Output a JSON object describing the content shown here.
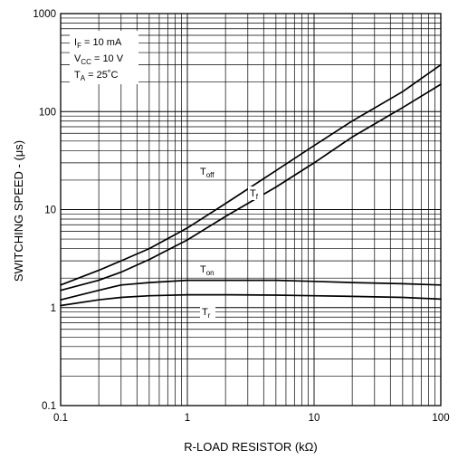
{
  "chart_data": {
    "type": "line",
    "xlabel": "R-LOAD RESISTOR (kΩ)",
    "ylabel": "SWITCHING SPEED -  (μs)",
    "xscale": "log",
    "yscale": "log",
    "xlim": [
      0.1,
      100
    ],
    "ylim": [
      0.1,
      1000
    ],
    "grid": true,
    "x_tick_labels": [
      "0.1",
      "1",
      "10",
      "100"
    ],
    "y_tick_labels": [
      "0.1",
      "1",
      "10",
      "100",
      "1000"
    ],
    "conditions": [
      {
        "main": "I",
        "sub": "F",
        "rest": " = 10 mA"
      },
      {
        "main": "V",
        "sub": "CC",
        "rest": " = 10 V"
      },
      {
        "main": "T",
        "sub": "A",
        "rest": " = 25˚C"
      }
    ],
    "series": [
      {
        "name": "T_off",
        "label_main": "T",
        "label_sub": "off",
        "x": [
          0.1,
          0.2,
          0.3,
          0.5,
          1,
          2,
          5,
          10,
          20,
          50,
          100
        ],
        "y": [
          1.7,
          2.4,
          3.0,
          4.0,
          6.5,
          11.5,
          25,
          45,
          80,
          160,
          300
        ]
      },
      {
        "name": "T_f",
        "label_main": "T",
        "label_sub": "f",
        "x": [
          0.1,
          0.2,
          0.3,
          0.5,
          1,
          2,
          5,
          10,
          20,
          50,
          100
        ],
        "y": [
          1.5,
          1.9,
          2.3,
          3.1,
          4.9,
          8.5,
          17,
          30,
          55,
          110,
          190
        ]
      },
      {
        "name": "T_on",
        "label_main": "T",
        "label_sub": "on",
        "x": [
          0.1,
          0.2,
          0.3,
          0.5,
          1,
          2,
          5,
          10,
          20,
          50,
          100
        ],
        "y": [
          1.2,
          1.5,
          1.7,
          1.8,
          1.9,
          1.9,
          1.9,
          1.85,
          1.8,
          1.75,
          1.7
        ]
      },
      {
        "name": "T_r",
        "label_main": "T",
        "label_sub": "r",
        "x": [
          0.1,
          0.2,
          0.3,
          0.5,
          1,
          2,
          5,
          10,
          20,
          50,
          100
        ],
        "y": [
          1.05,
          1.2,
          1.27,
          1.32,
          1.35,
          1.35,
          1.34,
          1.32,
          1.3,
          1.27,
          1.22
        ]
      }
    ]
  }
}
